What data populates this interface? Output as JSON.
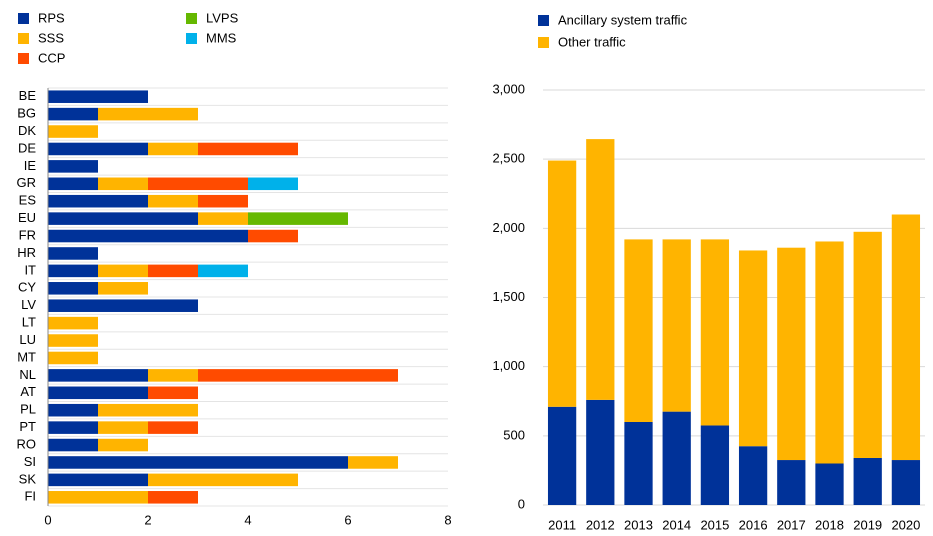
{
  "chart_data": [
    {
      "type": "bar",
      "orientation": "horizontal",
      "stacked": true,
      "grid": false,
      "categories": [
        "BE",
        "BG",
        "DK",
        "DE",
        "IE",
        "GR",
        "ES",
        "EU",
        "FR",
        "HR",
        "IT",
        "CY",
        "LV",
        "LT",
        "LU",
        "MT",
        "NL",
        "AT",
        "PL",
        "PT",
        "RO",
        "SI",
        "SK",
        "FI"
      ],
      "series": [
        {
          "name": "RPS",
          "color": "#003299",
          "values": [
            2,
            1,
            0,
            2,
            1,
            1,
            2,
            3,
            4,
            1,
            1,
            1,
            3,
            0,
            0,
            0,
            2,
            2,
            1,
            1,
            1,
            6,
            2,
            0
          ]
        },
        {
          "name": "SSS",
          "color": "#ffb400",
          "values": [
            0,
            2,
            1,
            1,
            0,
            1,
            1,
            1,
            0,
            0,
            1,
            1,
            0,
            1,
            1,
            1,
            1,
            0,
            2,
            1,
            1,
            1,
            3,
            2
          ]
        },
        {
          "name": "CCP",
          "color": "#ff4b00",
          "values": [
            0,
            0,
            0,
            2,
            0,
            2,
            1,
            0,
            1,
            0,
            1,
            0,
            0,
            0,
            0,
            0,
            4,
            1,
            0,
            1,
            0,
            0,
            0,
            1
          ]
        },
        {
          "name": "LVPS",
          "color": "#65b800",
          "values": [
            0,
            0,
            0,
            0,
            0,
            0,
            0,
            2,
            0,
            0,
            0,
            0,
            0,
            0,
            0,
            0,
            0,
            0,
            0,
            0,
            0,
            0,
            0,
            0
          ]
        },
        {
          "name": "MMS",
          "color": "#00b1ea",
          "values": [
            0,
            0,
            0,
            0,
            0,
            1,
            0,
            0,
            0,
            0,
            1,
            0,
            0,
            0,
            0,
            0,
            0,
            0,
            0,
            0,
            0,
            0,
            0,
            0
          ]
        }
      ],
      "xlim": [
        0,
        8
      ],
      "xticks": [
        0,
        2,
        4,
        6,
        8
      ]
    },
    {
      "type": "bar",
      "orientation": "vertical",
      "stacked": true,
      "grid": true,
      "categories": [
        "2011",
        "2012",
        "2013",
        "2014",
        "2015",
        "2016",
        "2017",
        "2018",
        "2019",
        "2020"
      ],
      "series": [
        {
          "name": "Ancillary system traffic",
          "color": "#003299",
          "values": [
            710,
            760,
            600,
            675,
            575,
            425,
            325,
            300,
            340,
            325
          ]
        },
        {
          "name": "Other traffic",
          "color": "#ffb400",
          "values": [
            1780,
            1885,
            1320,
            1245,
            1345,
            1415,
            1535,
            1605,
            1635,
            1775
          ]
        }
      ],
      "ylim": [
        0,
        3000
      ],
      "yticks": [
        0,
        500,
        {
          "value": 1000,
          "label": "1,000"
        },
        {
          "value": 1500,
          "label": "1,500"
        },
        {
          "value": 2000,
          "label": "2,000"
        },
        {
          "value": 2500,
          "label": "2,500"
        },
        {
          "value": 3000,
          "label": "3,000"
        }
      ]
    }
  ]
}
